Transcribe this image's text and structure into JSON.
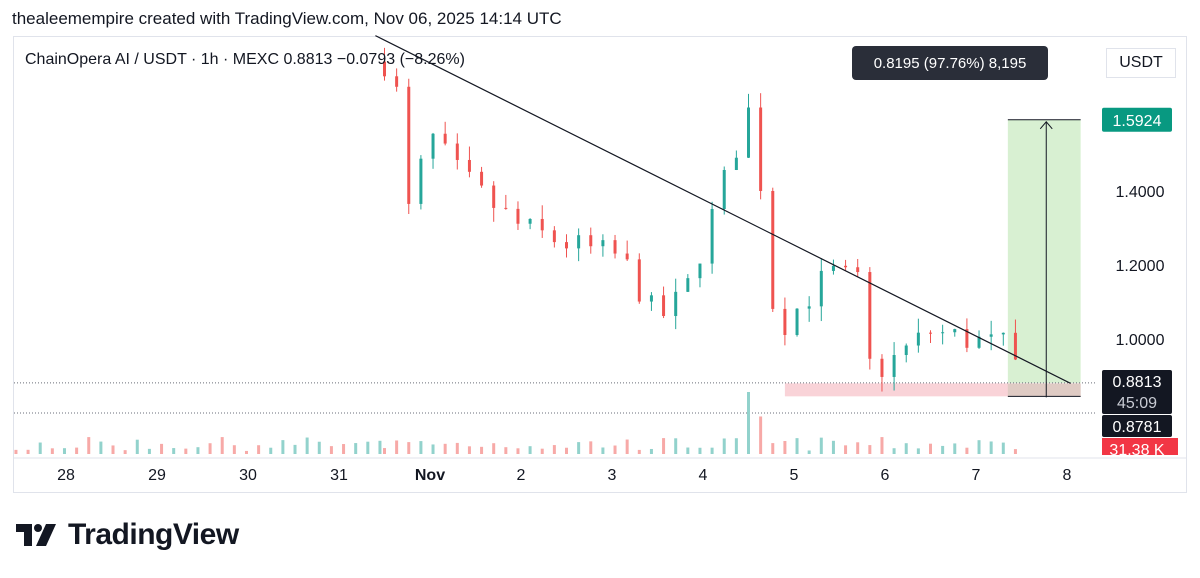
{
  "header": {
    "text": "thealeemempire created with TradingView.com, Nov 06, 2025 14:14 UTC"
  },
  "legend": {
    "text": "ChainOpera AI / USDT · 1h · MEXC  0.8813  −0.0793 (−8.26%)"
  },
  "scale": {
    "currency": "USDT"
  },
  "colors": {
    "up": "#26a69a",
    "down": "#ef5350",
    "vol_up": "#92d2cc",
    "vol_down": "#f7a9a7",
    "trend": "#131722",
    "target_zone": "#d8f0d2",
    "stop_zone": "#f9d3d8",
    "badge_green": "#089981",
    "badge_dark": "#131722"
  },
  "chart_data": {
    "type": "candlestick",
    "symbol": "ChainOpera AI / USDT",
    "interval": "1h",
    "exchange": "MEXC",
    "last": 0.8813,
    "change": -0.0793,
    "change_pct": -8.26,
    "y_ticks": [
      1.0,
      1.2,
      1.4
    ],
    "x_ticks": [
      "28",
      "29",
      "30",
      "31",
      "Nov",
      "2",
      "3",
      "4",
      "5",
      "6",
      "7",
      "8"
    ],
    "ohlc_keypoints": [
      {
        "day": 31.5,
        "price": 1.75
      },
      {
        "day": 31.7,
        "price": 1.62
      },
      {
        "day": 31.75,
        "price": 1.33
      },
      {
        "day": 32.0,
        "price": 1.55
      },
      {
        "day": 32.3,
        "price": 1.45
      },
      {
        "day": 32.6,
        "price": 1.38
      },
      {
        "day": 33.0,
        "price": 1.3
      },
      {
        "day": 33.6,
        "price": 1.25
      },
      {
        "day": 34.1,
        "price": 1.22
      },
      {
        "day": 34.5,
        "price": 1.05
      },
      {
        "day": 34.8,
        "price": 1.12
      },
      {
        "day": 35.55,
        "price": 1.65
      },
      {
        "day": 35.65,
        "price": 1.38
      },
      {
        "day": 35.8,
        "price": 1.02
      },
      {
        "day": 36.4,
        "price": 1.18
      },
      {
        "day": 36.7,
        "price": 1.15
      },
      {
        "day": 36.85,
        "price": 0.9
      },
      {
        "day": 37.5,
        "price": 1.02
      },
      {
        "day": 38.3,
        "price": 0.98
      },
      {
        "day": 38.55,
        "price": 0.88
      }
    ],
    "trendline": {
      "from": {
        "day": 31.4,
        "price": 1.82
      },
      "to": {
        "day": 38.6,
        "price": 0.88
      }
    },
    "horizontal_lines": [
      0.8813,
      0.8781
    ],
    "target_box": {
      "day_start": 38.35,
      "day_end": 39.15,
      "entry": 0.8813,
      "target": 1.5924
    },
    "stop_box": {
      "day_start": 35.9,
      "day_end": 39.15,
      "high": 0.88,
      "low": 0.845
    },
    "measure": {
      "label": "0.8195 (97.76%) 8,195"
    },
    "price_badges": {
      "target": "1.5924",
      "last": "0.8813",
      "countdown": "45:09",
      "other": "0.8781",
      "volume": "31.38 K"
    }
  }
}
